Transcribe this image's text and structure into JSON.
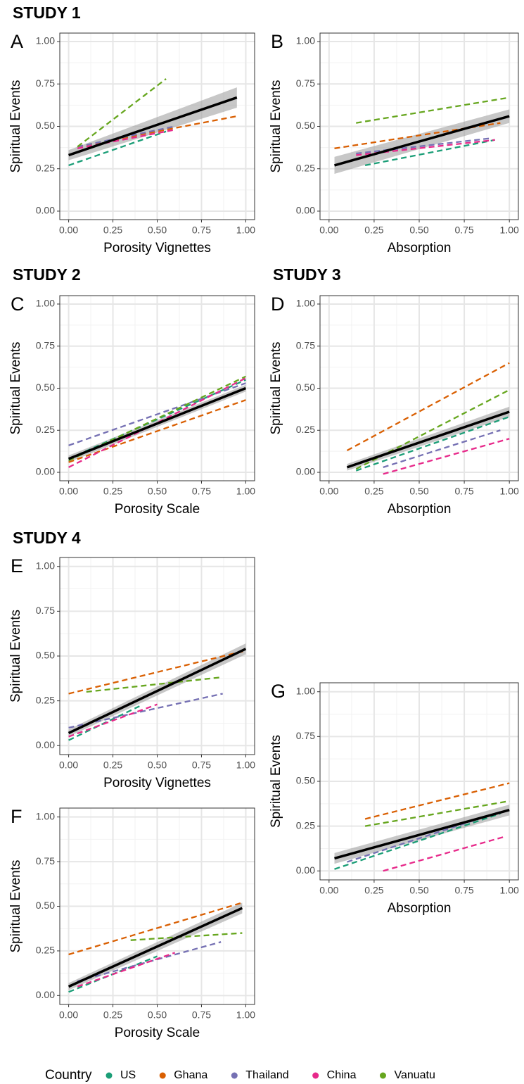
{
  "chart_data": [
    {
      "type": "line",
      "study": "STUDY 1",
      "panel": "A",
      "xlabel": "Porosity Vignettes",
      "ylabel": "Spiritual Events",
      "xlim": [
        -0.05,
        1.05
      ],
      "ylim": [
        -0.05,
        1.05
      ],
      "xticks": [
        {
          "value": 0,
          "label": "0.00"
        },
        {
          "value": 0.25,
          "label": "0.25"
        },
        {
          "value": 0.5,
          "label": "0.50"
        },
        {
          "value": 0.75,
          "label": "0.75"
        },
        {
          "value": 1,
          "label": "1.00"
        }
      ],
      "yticks": [
        {
          "value": 0,
          "label": "0.00"
        },
        {
          "value": 0.25,
          "label": "0.25"
        },
        {
          "value": 0.5,
          "label": "0.50"
        },
        {
          "value": 0.75,
          "label": "0.75"
        },
        {
          "value": 1,
          "label": "1.00"
        }
      ],
      "grid": true,
      "series": [
        {
          "name": "US",
          "color": "#1b9e77",
          "x": [
            0,
            0.55
          ],
          "values": [
            0.27,
            0.47
          ]
        },
        {
          "name": "Ghana",
          "color": "#d95f02",
          "x": [
            0.05,
            0.95
          ],
          "values": [
            0.38,
            0.56
          ]
        },
        {
          "name": "Thailand",
          "color": "#7570b3",
          "x": [
            0.05,
            0.6
          ],
          "values": [
            0.38,
            0.5
          ]
        },
        {
          "name": "China",
          "color": "#e7298a",
          "x": [
            0.05,
            0.6
          ],
          "values": [
            0.37,
            0.48
          ]
        },
        {
          "name": "Vanuatu",
          "color": "#66a61e",
          "x": [
            0.05,
            0.55
          ],
          "values": [
            0.38,
            0.78
          ]
        }
      ],
      "fit": {
        "color": "#000000",
        "x": [
          0,
          0.95
        ],
        "values": [
          0.33,
          0.67
        ],
        "lower": [
          0.3,
          0.61
        ],
        "upper": [
          0.36,
          0.73
        ]
      }
    },
    {
      "type": "line",
      "panel": "B",
      "xlabel": "Absorption",
      "ylabel": "Spiritual Events",
      "xlim": [
        -0.05,
        1.05
      ],
      "ylim": [
        -0.05,
        1.05
      ],
      "xticks": [
        {
          "value": 0,
          "label": "0.00"
        },
        {
          "value": 0.25,
          "label": "0.25"
        },
        {
          "value": 0.5,
          "label": "0.50"
        },
        {
          "value": 0.75,
          "label": "0.75"
        },
        {
          "value": 1,
          "label": "1.00"
        }
      ],
      "yticks": [
        {
          "value": 0,
          "label": "0.00"
        },
        {
          "value": 0.25,
          "label": "0.25"
        },
        {
          "value": 0.5,
          "label": "0.50"
        },
        {
          "value": 0.75,
          "label": "0.75"
        },
        {
          "value": 1,
          "label": "1.00"
        }
      ],
      "grid": true,
      "series": [
        {
          "name": "US",
          "color": "#1b9e77",
          "x": [
            0.2,
            0.92
          ],
          "values": [
            0.27,
            0.42
          ]
        },
        {
          "name": "Ghana",
          "color": "#d95f02",
          "x": [
            0.03,
            0.95
          ],
          "values": [
            0.37,
            0.52
          ]
        },
        {
          "name": "Thailand",
          "color": "#7570b3",
          "x": [
            0.15,
            0.9
          ],
          "values": [
            0.34,
            0.43
          ]
        },
        {
          "name": "China",
          "color": "#e7298a",
          "x": [
            0.15,
            0.92
          ],
          "values": [
            0.33,
            0.42
          ]
        },
        {
          "name": "Vanuatu",
          "color": "#66a61e",
          "x": [
            0.15,
            1
          ],
          "values": [
            0.52,
            0.67
          ]
        }
      ],
      "fit": {
        "color": "#000000",
        "x": [
          0.03,
          1
        ],
        "values": [
          0.27,
          0.56
        ],
        "lower": [
          0.22,
          0.52
        ],
        "upper": [
          0.32,
          0.6
        ]
      }
    },
    {
      "type": "line",
      "study": "STUDY 2",
      "panel": "C",
      "xlabel": "Porosity Scale",
      "ylabel": "Spiritual Events",
      "xlim": [
        -0.05,
        1.05
      ],
      "ylim": [
        -0.05,
        1.05
      ],
      "xticks": [
        {
          "value": 0,
          "label": "0.00"
        },
        {
          "value": 0.25,
          "label": "0.25"
        },
        {
          "value": 0.5,
          "label": "0.50"
        },
        {
          "value": 0.75,
          "label": "0.75"
        },
        {
          "value": 1,
          "label": "1.00"
        }
      ],
      "yticks": [
        {
          "value": 0,
          "label": "0.00"
        },
        {
          "value": 0.25,
          "label": "0.25"
        },
        {
          "value": 0.5,
          "label": "0.50"
        },
        {
          "value": 0.75,
          "label": "0.75"
        },
        {
          "value": 1,
          "label": "1.00"
        }
      ],
      "grid": true,
      "series": [
        {
          "name": "US",
          "color": "#1b9e77",
          "x": [
            0,
            1
          ],
          "values": [
            0.08,
            0.55
          ]
        },
        {
          "name": "Ghana",
          "color": "#d95f02",
          "x": [
            0,
            1
          ],
          "values": [
            0.06,
            0.43
          ]
        },
        {
          "name": "Thailand",
          "color": "#7570b3",
          "x": [
            0,
            1
          ],
          "values": [
            0.16,
            0.53
          ]
        },
        {
          "name": "China",
          "color": "#e7298a",
          "x": [
            0,
            1
          ],
          "values": [
            0.03,
            0.56
          ]
        },
        {
          "name": "Vanuatu",
          "color": "#66a61e",
          "x": [
            0,
            1
          ],
          "values": [
            0.07,
            0.57
          ]
        }
      ],
      "fit": {
        "color": "#000000",
        "x": [
          0,
          1
        ],
        "values": [
          0.08,
          0.5
        ],
        "lower": [
          0.06,
          0.48
        ],
        "upper": [
          0.1,
          0.52
        ]
      }
    },
    {
      "type": "line",
      "study": "STUDY 3",
      "panel": "D",
      "xlabel": "Absorption",
      "ylabel": "Spiritual Events",
      "xlim": [
        -0.05,
        1.05
      ],
      "ylim": [
        -0.05,
        1.05
      ],
      "xticks": [
        {
          "value": 0,
          "label": "0.00"
        },
        {
          "value": 0.25,
          "label": "0.25"
        },
        {
          "value": 0.5,
          "label": "0.50"
        },
        {
          "value": 0.75,
          "label": "0.75"
        },
        {
          "value": 1,
          "label": "1.00"
        }
      ],
      "yticks": [
        {
          "value": 0,
          "label": "0.00"
        },
        {
          "value": 0.25,
          "label": "0.25"
        },
        {
          "value": 0.5,
          "label": "0.50"
        },
        {
          "value": 0.75,
          "label": "0.75"
        },
        {
          "value": 1,
          "label": "1.00"
        }
      ],
      "grid": true,
      "series": [
        {
          "name": "US",
          "color": "#1b9e77",
          "x": [
            0.15,
            1
          ],
          "values": [
            0.01,
            0.33
          ]
        },
        {
          "name": "Ghana",
          "color": "#d95f02",
          "x": [
            0.1,
            1
          ],
          "values": [
            0.13,
            0.65
          ]
        },
        {
          "name": "Thailand",
          "color": "#7570b3",
          "x": [
            0.3,
            0.95
          ],
          "values": [
            0.03,
            0.25
          ]
        },
        {
          "name": "China",
          "color": "#e7298a",
          "x": [
            0.3,
            1
          ],
          "values": [
            -0.01,
            0.2
          ]
        },
        {
          "name": "Vanuatu",
          "color": "#66a61e",
          "x": [
            0.15,
            1
          ],
          "values": [
            0.02,
            0.49
          ]
        }
      ],
      "fit": {
        "color": "#000000",
        "x": [
          0.1,
          1
        ],
        "values": [
          0.03,
          0.36
        ],
        "lower": [
          0.01,
          0.33
        ],
        "upper": [
          0.05,
          0.39
        ]
      }
    },
    {
      "type": "line",
      "study": "STUDY 4",
      "panel": "E",
      "xlabel": "Porosity Vignettes",
      "ylabel": "Spiritual Events",
      "xlim": [
        -0.05,
        1.05
      ],
      "ylim": [
        -0.05,
        1.05
      ],
      "xticks": [
        {
          "value": 0,
          "label": "0.00"
        },
        {
          "value": 0.25,
          "label": "0.25"
        },
        {
          "value": 0.5,
          "label": "0.50"
        },
        {
          "value": 0.75,
          "label": "0.75"
        },
        {
          "value": 1,
          "label": "1.00"
        }
      ],
      "yticks": [
        {
          "value": 0,
          "label": "0.00"
        },
        {
          "value": 0.25,
          "label": "0.25"
        },
        {
          "value": 0.5,
          "label": "0.50"
        },
        {
          "value": 0.75,
          "label": "0.75"
        },
        {
          "value": 1,
          "label": "1.00"
        }
      ],
      "grid": true,
      "series": [
        {
          "name": "US",
          "color": "#1b9e77",
          "x": [
            0,
            0.4
          ],
          "values": [
            0.03,
            0.22
          ]
        },
        {
          "name": "Ghana",
          "color": "#d95f02",
          "x": [
            0,
            1
          ],
          "values": [
            0.29,
            0.53
          ]
        },
        {
          "name": "Thailand",
          "color": "#7570b3",
          "x": [
            0,
            0.87
          ],
          "values": [
            0.1,
            0.29
          ]
        },
        {
          "name": "China",
          "color": "#e7298a",
          "x": [
            0,
            0.5
          ],
          "values": [
            0.05,
            0.23
          ]
        },
        {
          "name": "Vanuatu",
          "color": "#66a61e",
          "x": [
            0.1,
            0.85
          ],
          "values": [
            0.3,
            0.38
          ]
        }
      ],
      "fit": {
        "color": "#000000",
        "x": [
          0,
          1
        ],
        "values": [
          0.07,
          0.54
        ],
        "lower": [
          0.05,
          0.51
        ],
        "upper": [
          0.09,
          0.57
        ]
      }
    },
    {
      "type": "line",
      "panel": "F",
      "xlabel": "Porosity Scale",
      "ylabel": "Spiritual Events",
      "xlim": [
        -0.05,
        1.05
      ],
      "ylim": [
        -0.05,
        1.05
      ],
      "xticks": [
        {
          "value": 0,
          "label": "0.00"
        },
        {
          "value": 0.25,
          "label": "0.25"
        },
        {
          "value": 0.5,
          "label": "0.50"
        },
        {
          "value": 0.75,
          "label": "0.75"
        },
        {
          "value": 1,
          "label": "1.00"
        }
      ],
      "yticks": [
        {
          "value": 0,
          "label": "0.00"
        },
        {
          "value": 0.25,
          "label": "0.25"
        },
        {
          "value": 0.5,
          "label": "0.50"
        },
        {
          "value": 0.75,
          "label": "0.75"
        },
        {
          "value": 1,
          "label": "1.00"
        }
      ],
      "grid": true,
      "series": [
        {
          "name": "US",
          "color": "#1b9e77",
          "x": [
            0,
            0.5
          ],
          "values": [
            0.02,
            0.22
          ]
        },
        {
          "name": "Ghana",
          "color": "#d95f02",
          "x": [
            0,
            0.98
          ],
          "values": [
            0.23,
            0.52
          ]
        },
        {
          "name": "Thailand",
          "color": "#7570b3",
          "x": [
            0.05,
            0.86
          ],
          "values": [
            0.08,
            0.3
          ]
        },
        {
          "name": "China",
          "color": "#e7298a",
          "x": [
            0.05,
            0.6
          ],
          "values": [
            0.05,
            0.24
          ]
        },
        {
          "name": "Vanuatu",
          "color": "#66a61e",
          "x": [
            0.35,
            0.98
          ],
          "values": [
            0.31,
            0.35
          ]
        }
      ],
      "fit": {
        "color": "#000000",
        "x": [
          0,
          0.98
        ],
        "values": [
          0.05,
          0.49
        ],
        "lower": [
          0.03,
          0.46
        ],
        "upper": [
          0.07,
          0.52
        ]
      }
    },
    {
      "type": "line",
      "panel": "G",
      "xlabel": "Absorption",
      "ylabel": "Spiritual Events",
      "xlim": [
        -0.05,
        1.05
      ],
      "ylim": [
        -0.05,
        1.05
      ],
      "xticks": [
        {
          "value": 0,
          "label": "0.00"
        },
        {
          "value": 0.25,
          "label": "0.25"
        },
        {
          "value": 0.5,
          "label": "0.50"
        },
        {
          "value": 0.75,
          "label": "0.75"
        },
        {
          "value": 1,
          "label": "1.00"
        }
      ],
      "yticks": [
        {
          "value": 0,
          "label": "0.00"
        },
        {
          "value": 0.25,
          "label": "0.25"
        },
        {
          "value": 0.5,
          "label": "0.50"
        },
        {
          "value": 0.75,
          "label": "0.75"
        },
        {
          "value": 1,
          "label": "1.00"
        }
      ],
      "grid": true,
      "series": [
        {
          "name": "US",
          "color": "#1b9e77",
          "x": [
            0.03,
            0.95
          ],
          "values": [
            0.01,
            0.32
          ]
        },
        {
          "name": "Ghana",
          "color": "#d95f02",
          "x": [
            0.2,
            1
          ],
          "values": [
            0.29,
            0.49
          ]
        },
        {
          "name": "Thailand",
          "color": "#7570b3",
          "x": [
            0.1,
            0.95
          ],
          "values": [
            0.05,
            0.33
          ]
        },
        {
          "name": "China",
          "color": "#e7298a",
          "x": [
            0.3,
            0.97
          ],
          "values": [
            0,
            0.19
          ]
        },
        {
          "name": "Vanuatu",
          "color": "#66a61e",
          "x": [
            0.2,
            1
          ],
          "values": [
            0.25,
            0.39
          ]
        }
      ],
      "fit": {
        "color": "#000000",
        "x": [
          0.03,
          1
        ],
        "values": [
          0.07,
          0.34
        ],
        "lower": [
          0.04,
          0.31
        ],
        "upper": [
          0.1,
          0.37
        ]
      }
    }
  ],
  "legend_title": "Country"
}
